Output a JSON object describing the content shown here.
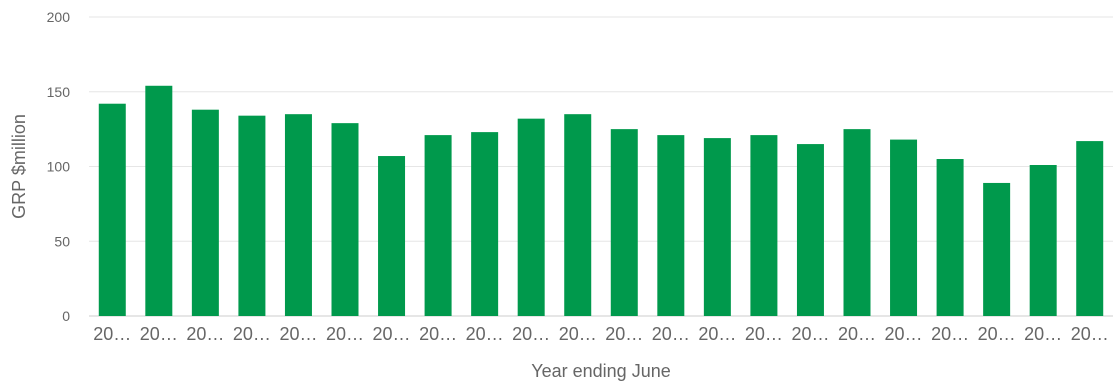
{
  "chart_data": {
    "type": "bar",
    "title": "",
    "xlabel": "Year ending June",
    "ylabel": "GRP $million",
    "ylim": [
      0,
      200
    ],
    "yticks": [
      0,
      50,
      100,
      150,
      200
    ],
    "grid": true,
    "bar_color": "#00994c",
    "categories": [
      "20…",
      "20…",
      "20…",
      "20…",
      "20…",
      "20…",
      "20…",
      "20…",
      "20…",
      "20…",
      "20…",
      "20…",
      "20…",
      "20…",
      "20…",
      "20…",
      "20…",
      "20…",
      "20…",
      "20…",
      "20…",
      "20…"
    ],
    "values": [
      142,
      154,
      138,
      134,
      135,
      129,
      107,
      121,
      123,
      132,
      135,
      125,
      121,
      119,
      121,
      115,
      125,
      118,
      105,
      89,
      101,
      117
    ]
  }
}
